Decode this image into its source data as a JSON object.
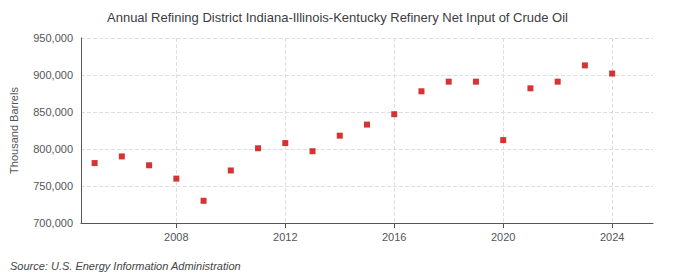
{
  "chart_data": {
    "type": "scatter",
    "title": "Annual Refining District Indiana-Illinois-Kentucky Refinery Net Input of Crude Oil",
    "ylabel": "Thousand Barrels",
    "annotations": [
      "Source: U.S. Energy Information Administration"
    ],
    "x": [
      2005,
      2006,
      2007,
      2008,
      2009,
      2010,
      2011,
      2012,
      2013,
      2014,
      2015,
      2016,
      2017,
      2018,
      2019,
      2020,
      2021,
      2022,
      2023,
      2024
    ],
    "values": [
      781000,
      790000,
      778000,
      760000,
      730000,
      771000,
      801000,
      808000,
      797000,
      818000,
      833000,
      847000,
      878000,
      891000,
      891000,
      812000,
      882000,
      891000,
      913000,
      902000
    ],
    "color": "#cc0000",
    "marker": "square",
    "xlim": [
      2004.5,
      2025.5
    ],
    "xticks": [
      2008,
      2012,
      2016,
      2020,
      2024
    ],
    "ylim": [
      700000,
      950000
    ],
    "yticks": [
      {
        "value": 700000,
        "label": "700,000"
      },
      {
        "value": 750000,
        "label": "750,000"
      },
      {
        "value": 800000,
        "label": "800,000"
      },
      {
        "value": 850000,
        "label": "850,000"
      },
      {
        "value": 900000,
        "label": "900,000"
      },
      {
        "value": 950000,
        "label": "950,000"
      }
    ],
    "grid": true
  }
}
